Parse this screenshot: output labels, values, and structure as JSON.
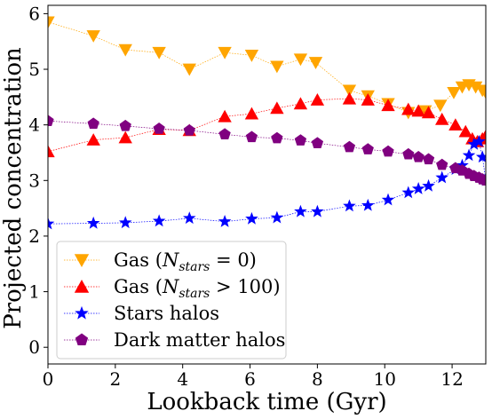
{
  "chart_data": {
    "type": "line",
    "title": "",
    "xlabel": "Lookback time (Gyr)",
    "ylabel": "Projected concentration",
    "xlim": [
      0,
      13
    ],
    "ylim": [
      -0.3,
      6.15
    ],
    "xticks": [
      "0",
      "2",
      "4",
      "6",
      "8",
      "10",
      "12"
    ],
    "yticks": [
      "0",
      "1",
      "2",
      "3",
      "4",
      "5",
      "6"
    ],
    "grid": false,
    "legend_position": "lower-left",
    "series": [
      {
        "name": "Gas ($N_{stars} = 0$)",
        "display_name": "Gas (N",
        "display_sub": "stars",
        "display_rest": " = 0)",
        "color": "#FFA500",
        "marker": "triangle-down",
        "x": [
          0,
          1.35,
          2.3,
          3.3,
          4.2,
          5.25,
          6.05,
          6.8,
          7.5,
          7.95,
          8.95,
          9.5,
          10.1,
          10.7,
          11.2,
          11.65,
          12.05,
          12.3,
          12.5,
          12.7,
          12.9,
          13.0
        ],
        "y": [
          5.85,
          5.6,
          5.35,
          5.3,
          5.0,
          5.3,
          5.25,
          5.05,
          5.18,
          5.12,
          4.62,
          4.52,
          4.38,
          4.22,
          4.25,
          4.35,
          4.58,
          4.68,
          4.72,
          4.68,
          4.62,
          4.58
        ]
      },
      {
        "name": "Gas ($N_{stars} > 100$)",
        "display_name": "Gas (N",
        "display_sub": "stars",
        "display_rest": " > 100)",
        "color": "#FF0000",
        "marker": "triangle-up",
        "x": [
          0,
          1.35,
          2.3,
          3.3,
          4.2,
          5.25,
          6.05,
          6.8,
          7.5,
          8.0,
          8.95,
          9.5,
          10.1,
          10.7,
          11.0,
          11.3,
          11.7,
          12.1,
          12.4,
          12.6,
          12.75,
          12.9,
          13.0
        ],
        "y": [
          3.52,
          3.73,
          3.77,
          3.92,
          3.9,
          4.15,
          4.2,
          4.3,
          4.38,
          4.45,
          4.47,
          4.45,
          4.35,
          4.28,
          4.25,
          4.22,
          4.1,
          4.0,
          3.88,
          3.75,
          3.7,
          3.75,
          3.8
        ]
      },
      {
        "name": "Stars halos",
        "display_name": "Stars halos",
        "display_sub": "",
        "display_rest": "",
        "color": "#0000FF",
        "marker": "star",
        "x": [
          0,
          1.35,
          2.3,
          3.3,
          4.2,
          5.25,
          6.05,
          6.8,
          7.5,
          8.0,
          8.95,
          9.5,
          10.1,
          10.7,
          11.0,
          11.3,
          11.7,
          12.1,
          12.3,
          12.5,
          12.65,
          12.8,
          12.9,
          13.0
        ],
        "y": [
          2.22,
          2.23,
          2.24,
          2.27,
          2.32,
          2.26,
          2.31,
          2.33,
          2.44,
          2.44,
          2.54,
          2.55,
          2.65,
          2.78,
          2.85,
          2.9,
          3.05,
          3.2,
          3.27,
          3.45,
          3.65,
          3.7,
          3.42,
          3.0
        ]
      },
      {
        "name": "Dark matter halos",
        "display_name": "Dark matter halos",
        "display_sub": "",
        "display_rest": "",
        "color": "#800080",
        "marker": "pentagon",
        "x": [
          0,
          1.35,
          2.3,
          3.3,
          4.2,
          5.25,
          6.05,
          6.8,
          7.5,
          8.0,
          8.95,
          9.5,
          10.1,
          10.7,
          11.0,
          11.3,
          11.7,
          12.1,
          12.3,
          12.5,
          12.65,
          12.8,
          12.9,
          13.0
        ],
        "y": [
          4.07,
          4.02,
          3.98,
          3.93,
          3.9,
          3.83,
          3.78,
          3.76,
          3.72,
          3.67,
          3.6,
          3.56,
          3.52,
          3.47,
          3.42,
          3.38,
          3.28,
          3.22,
          3.18,
          3.12,
          3.08,
          3.05,
          3.02,
          3.0
        ]
      }
    ]
  }
}
